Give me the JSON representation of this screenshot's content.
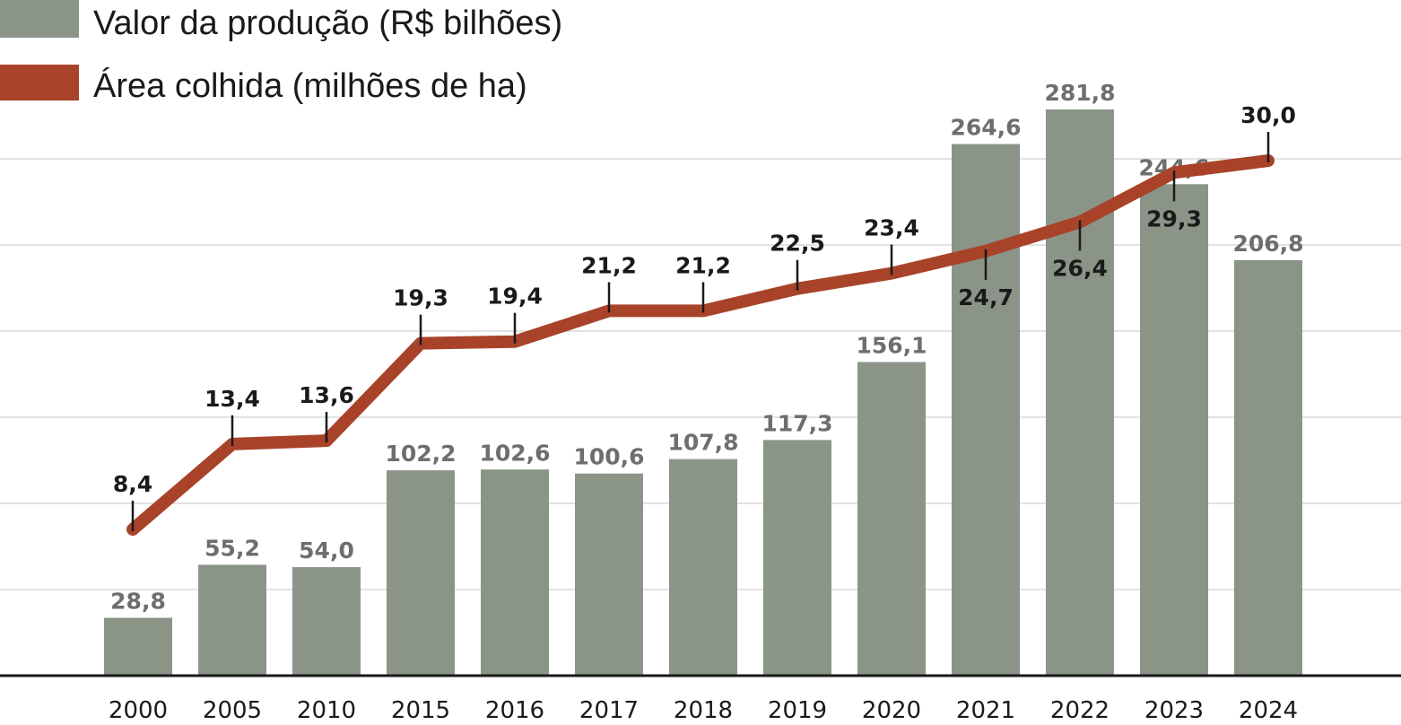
{
  "legend": {
    "bars_label": "Valor da produção (R$ bilhões)",
    "line_label": "Área colhida (milhões de ha)"
  },
  "colors": {
    "bar": "#8a9588",
    "line": "#a8432a",
    "grid": "#d9d9d9",
    "axis": "#1a1a1a",
    "bar_label": "#6e6e6e",
    "line_label": "#1a1a1a"
  },
  "chart_data": {
    "type": "bar",
    "categories": [
      "2000",
      "2005",
      "2010",
      "2015",
      "2016",
      "2017",
      "2018",
      "2019",
      "2020",
      "2021",
      "2022",
      "2023",
      "2024"
    ],
    "series": [
      {
        "name": "Valor da produção (R$ bilhões)",
        "type": "bar",
        "values": [
          28.8,
          55.2,
          54.0,
          102.2,
          102.6,
          100.6,
          107.8,
          117.3,
          156.1,
          264.6,
          281.8,
          244.6,
          206.8
        ],
        "labels": [
          "28,8",
          "55,2",
          "54,0",
          "102,2",
          "102,6",
          "100,6",
          "107,8",
          "117,3",
          "156,1",
          "264,6",
          "281,8",
          "244,6",
          "206,8"
        ]
      },
      {
        "name": "Área colhida (milhões de ha)",
        "type": "line",
        "values": [
          8.4,
          13.4,
          13.6,
          19.3,
          19.4,
          21.2,
          21.2,
          22.5,
          23.4,
          24.7,
          26.4,
          29.3,
          30.0
        ],
        "labels": [
          "8,4",
          "13,4",
          "13,6",
          "19,3",
          "19,4",
          "21,2",
          "21,2",
          "22,5",
          "23,4",
          "24,7",
          "26,4",
          "29,3",
          "30,0"
        ],
        "label_position": [
          "above",
          "above",
          "above",
          "above",
          "above",
          "above",
          "above",
          "above",
          "above",
          "below",
          "below",
          "below",
          "above"
        ]
      }
    ],
    "bar_ylim": [
      0,
      300
    ],
    "line_ylim": [
      0,
      35
    ],
    "grid": true,
    "legend_position": "top-left"
  }
}
